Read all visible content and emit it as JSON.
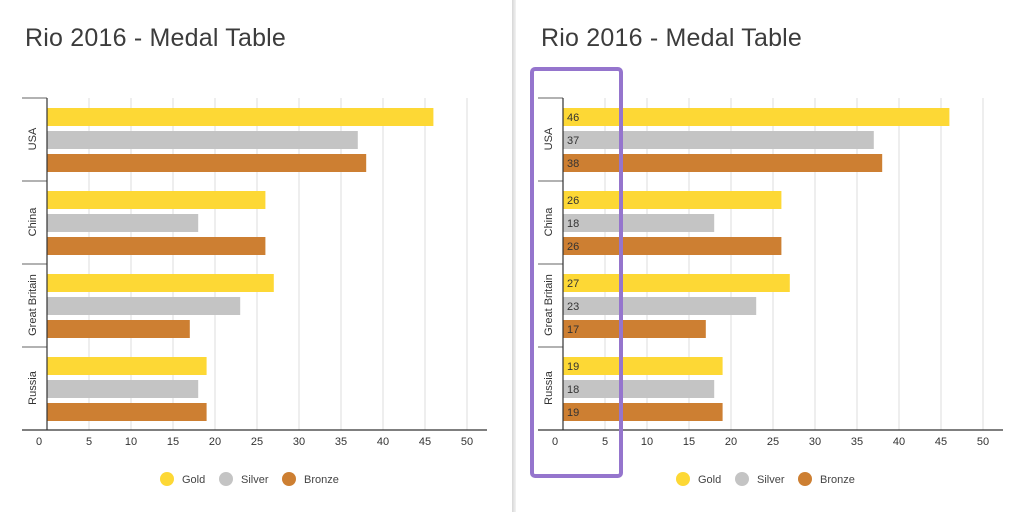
{
  "colors": {
    "gold": "#FDD835",
    "silver": "#C4C4C4",
    "bronze": "#CD7F32",
    "highlight": "#9575CD"
  },
  "chart_data": [
    {
      "type": "bar",
      "orientation": "horizontal",
      "title": "Rio 2016 - Medal Table",
      "categories": [
        "USA",
        "China",
        "Great Britain",
        "Russia"
      ],
      "series": [
        {
          "name": "Gold",
          "values": [
            46,
            26,
            27,
            19
          ]
        },
        {
          "name": "Silver",
          "values": [
            37,
            18,
            23,
            18
          ]
        },
        {
          "name": "Bronze",
          "values": [
            38,
            26,
            17,
            19
          ]
        }
      ],
      "xlim": [
        0,
        50
      ],
      "xticks": [
        "0",
        "5",
        "10",
        "15",
        "20",
        "25",
        "30",
        "35",
        "40",
        "45",
        "50"
      ],
      "grid": true,
      "legend": "bottom",
      "data_labels": false
    },
    {
      "type": "bar",
      "orientation": "horizontal",
      "title": "Rio 2016 - Medal Table",
      "categories": [
        "USA",
        "China",
        "Great Britain",
        "Russia"
      ],
      "series": [
        {
          "name": "Gold",
          "values": [
            46,
            26,
            27,
            19
          ]
        },
        {
          "name": "Silver",
          "values": [
            37,
            18,
            23,
            18
          ]
        },
        {
          "name": "Bronze",
          "values": [
            38,
            26,
            17,
            19
          ]
        }
      ],
      "xlim": [
        0,
        50
      ],
      "xticks": [
        "0",
        "5",
        "10",
        "15",
        "20",
        "25",
        "30",
        "35",
        "40",
        "45",
        "50"
      ],
      "grid": true,
      "legend": "bottom",
      "data_labels": true,
      "highlight_box": true
    }
  ]
}
